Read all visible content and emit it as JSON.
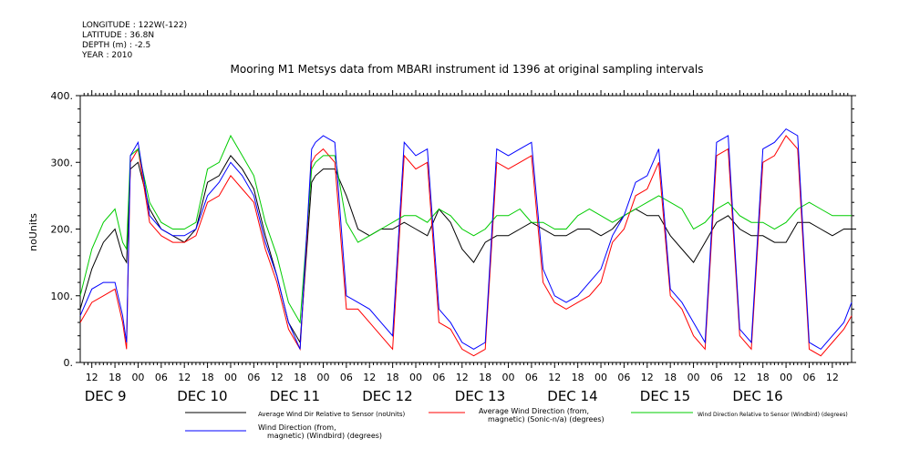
{
  "meta_lines": [
    "LONGITUDE : 122W(-122)",
    "LATITUDE : 36.8N",
    "DEPTH (m) : -2.5",
    "YEAR : 2010"
  ],
  "chart_data": {
    "type": "line",
    "title": "Mooring M1 Metsys data from MBARI instrument id 1396 at original sampling intervals",
    "ylabel": "noUnits",
    "ylim": [
      0,
      400
    ],
    "y_ticks": [
      0,
      100,
      200,
      300,
      400
    ],
    "y_tick_labels": [
      "0.",
      "100.",
      "200.",
      "300.",
      "400."
    ],
    "xlim_hours": [
      9,
      209
    ],
    "hour_ticks": [
      12,
      18,
      "00",
      "06",
      12,
      18,
      "00",
      "06",
      12,
      18,
      "00",
      "06",
      12,
      18,
      "00",
      "06",
      12,
      18,
      "00",
      "06",
      12,
      18,
      "00",
      "06",
      12,
      18,
      "00",
      "06",
      12,
      18,
      "00",
      "06",
      12
    ],
    "day_labels": [
      "DEC  9",
      "DEC 10",
      "DEC 11",
      "DEC 12",
      "DEC 13",
      "DEC 14",
      "DEC 15",
      "DEC 16"
    ],
    "grid": false,
    "series": [
      {
        "name": "Average Wind Dir Relative to Sensor (noUnits)",
        "color": "#000000",
        "x": [
          9,
          12,
          15,
          18,
          20,
          21,
          22,
          24,
          27,
          30,
          33,
          36,
          39,
          42,
          45,
          48,
          51,
          54,
          57,
          60,
          63,
          66,
          69,
          70,
          72,
          75,
          78,
          81,
          84,
          87,
          90,
          93,
          96,
          99,
          102,
          105,
          108,
          111,
          114,
          117,
          120,
          123,
          126,
          129,
          132,
          135,
          138,
          141,
          144,
          147,
          150,
          153,
          156,
          159,
          162,
          165,
          168,
          171,
          174,
          177,
          180,
          183,
          186,
          189,
          192,
          195,
          198,
          201,
          204,
          207,
          209
        ],
        "values": [
          80,
          140,
          180,
          200,
          160,
          150,
          290,
          300,
          230,
          200,
          190,
          180,
          200,
          270,
          280,
          310,
          290,
          260,
          190,
          130,
          60,
          30,
          270,
          280,
          290,
          290,
          250,
          200,
          190,
          200,
          200,
          210,
          200,
          190,
          230,
          210,
          170,
          150,
          180,
          190,
          190,
          200,
          210,
          200,
          190,
          190,
          200,
          200,
          190,
          200,
          220,
          230,
          220,
          220,
          190,
          170,
          150,
          180,
          210,
          220,
          200,
          190,
          190,
          180,
          180,
          210,
          210,
          200,
          190,
          200,
          200
        ]
      },
      {
        "name": "Average Wind Direction (from, magnetic) (Sonic-n/a) (degrees)",
        "color": "#ff0000",
        "x": [
          9,
          12,
          15,
          18,
          20,
          21,
          22,
          24,
          27,
          30,
          33,
          36,
          39,
          42,
          45,
          48,
          51,
          54,
          57,
          60,
          63,
          66,
          69,
          70,
          72,
          75,
          78,
          81,
          84,
          87,
          90,
          93,
          96,
          99,
          102,
          105,
          108,
          111,
          114,
          117,
          120,
          123,
          126,
          129,
          132,
          135,
          138,
          141,
          144,
          147,
          150,
          153,
          156,
          159,
          162,
          165,
          168,
          171,
          174,
          177,
          180,
          183,
          186,
          189,
          192,
          195,
          198,
          201,
          204,
          207,
          209
        ],
        "values": [
          60,
          90,
          100,
          110,
          60,
          20,
          300,
          320,
          210,
          190,
          180,
          180,
          190,
          240,
          250,
          280,
          260,
          240,
          170,
          120,
          50,
          20,
          300,
          310,
          320,
          300,
          80,
          80,
          60,
          40,
          20,
          310,
          290,
          300,
          60,
          50,
          20,
          10,
          20,
          300,
          290,
          300,
          310,
          120,
          90,
          80,
          90,
          100,
          120,
          180,
          200,
          250,
          260,
          300,
          100,
          80,
          40,
          20,
          310,
          320,
          40,
          20,
          300,
          310,
          340,
          320,
          20,
          10,
          30,
          50,
          70
        ]
      },
      {
        "name": "Wind Direction Relative to Sensor (Windbird) (degrees)",
        "color": "#00cc00",
        "x": [
          9,
          12,
          15,
          18,
          20,
          21,
          22,
          24,
          27,
          30,
          33,
          36,
          39,
          42,
          45,
          48,
          51,
          54,
          57,
          60,
          63,
          66,
          69,
          70,
          72,
          75,
          78,
          81,
          84,
          87,
          90,
          93,
          96,
          99,
          102,
          105,
          108,
          111,
          114,
          117,
          120,
          123,
          126,
          129,
          132,
          135,
          138,
          141,
          144,
          147,
          150,
          153,
          156,
          159,
          162,
          165,
          168,
          171,
          174,
          177,
          180,
          183,
          186,
          189,
          192,
          195,
          198,
          201,
          204,
          207,
          209
        ],
        "values": [
          100,
          170,
          210,
          230,
          180,
          170,
          310,
          320,
          240,
          210,
          200,
          200,
          210,
          290,
          300,
          340,
          310,
          280,
          210,
          160,
          90,
          60,
          290,
          300,
          310,
          310,
          210,
          180,
          190,
          200,
          210,
          220,
          220,
          210,
          230,
          220,
          200,
          190,
          200,
          220,
          220,
          230,
          210,
          210,
          200,
          200,
          220,
          230,
          220,
          210,
          220,
          230,
          240,
          250,
          240,
          230,
          200,
          210,
          230,
          240,
          220,
          210,
          210,
          200,
          210,
          230,
          240,
          230,
          220,
          220,
          220
        ]
      },
      {
        "name": "Wind Direction (from, magnetic) (Windbird) (degrees)",
        "color": "#0000ff",
        "x": [
          9,
          12,
          15,
          18,
          20,
          21,
          22,
          24,
          27,
          30,
          33,
          36,
          39,
          42,
          45,
          48,
          51,
          54,
          57,
          60,
          63,
          66,
          69,
          70,
          72,
          75,
          78,
          81,
          84,
          87,
          90,
          93,
          96,
          99,
          102,
          105,
          108,
          111,
          114,
          117,
          120,
          123,
          126,
          129,
          132,
          135,
          138,
          141,
          144,
          147,
          150,
          153,
          156,
          159,
          162,
          165,
          168,
          171,
          174,
          177,
          180,
          183,
          186,
          189,
          192,
          195,
          198,
          201,
          204,
          207,
          209
        ],
        "values": [
          70,
          110,
          120,
          120,
          70,
          30,
          310,
          330,
          220,
          200,
          190,
          190,
          200,
          250,
          270,
          300,
          280,
          250,
          180,
          130,
          60,
          20,
          320,
          330,
          340,
          330,
          100,
          90,
          80,
          60,
          40,
          330,
          310,
          320,
          80,
          60,
          30,
          20,
          30,
          320,
          310,
          320,
          330,
          140,
          100,
          90,
          100,
          120,
          140,
          190,
          220,
          270,
          280,
          320,
          110,
          90,
          60,
          30,
          330,
          340,
          50,
          30,
          320,
          330,
          350,
          340,
          30,
          20,
          40,
          60,
          90
        ]
      }
    ],
    "legend": {
      "placement": "bottom",
      "items": [
        {
          "line1": "Average Wind Dir Relative to Sensor (noUnits)",
          "line2": "",
          "color": "#000000"
        },
        {
          "line1": "Average Wind Direction (from,",
          "line2": "magnetic) (Sonic-n/a) (degrees)",
          "color": "#ff0000"
        },
        {
          "line1": "Wind Direction Relative to Sensor (Windbird) (degrees)",
          "line2": "",
          "color": "#00cc00"
        },
        {
          "line1": "Wind Direction (from,",
          "line2": "magnetic) (Windbird) (degrees)",
          "color": "#0000ff"
        }
      ]
    }
  }
}
